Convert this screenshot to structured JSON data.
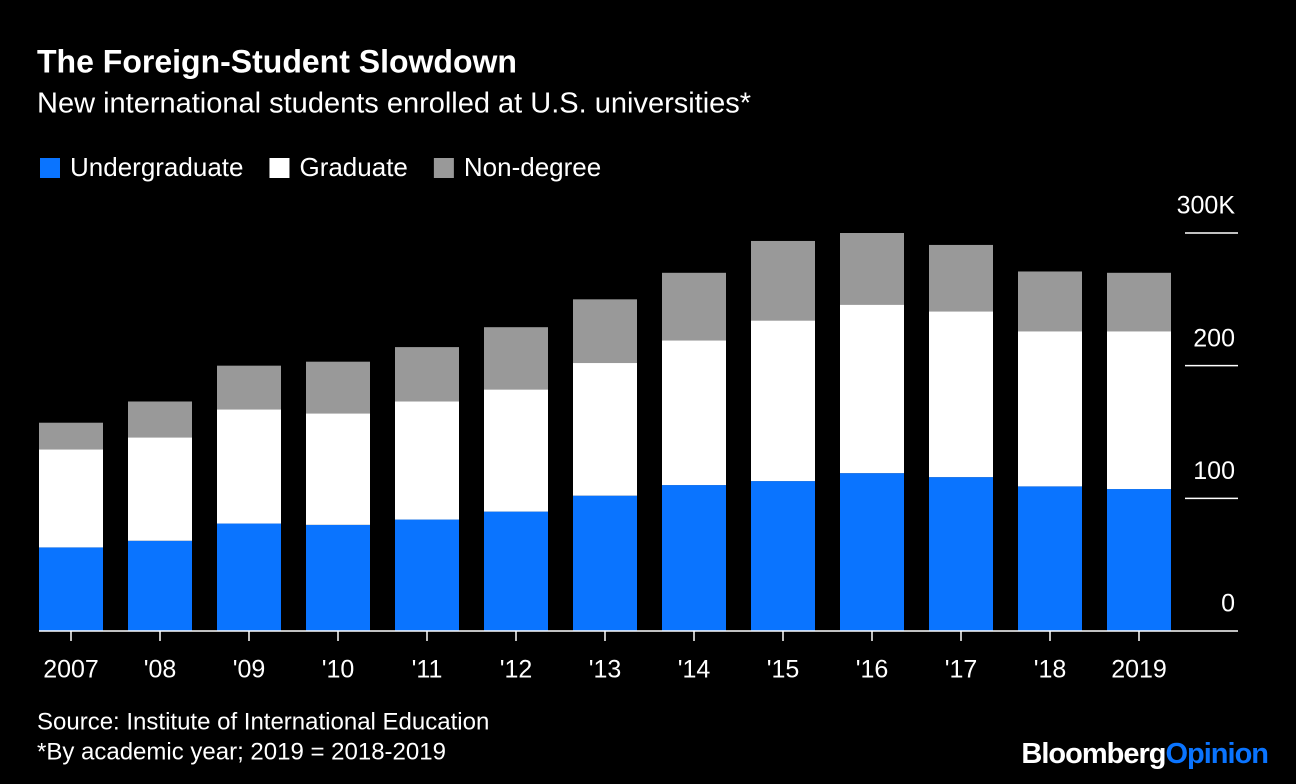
{
  "chart_data": {
    "type": "stacked_bar",
    "title": "The Foreign-Student Slowdown",
    "subtitle": "New international students enrolled at U.S. universities*",
    "categories": [
      "2007",
      "'08",
      "'09",
      "'10",
      "'11",
      "'12",
      "'13",
      "'14",
      "'15",
      "'16",
      "'17",
      "'18",
      "2019"
    ],
    "series": [
      {
        "name": "Undergraduate",
        "color": "#0a74ff",
        "values": [
          63,
          68,
          81,
          80,
          84,
          90,
          102,
          110,
          113,
          119,
          116,
          109,
          107
        ]
      },
      {
        "name": "Graduate",
        "color": "#ffffff",
        "values": [
          74,
          78,
          86,
          84,
          89,
          92,
          100,
          109,
          121,
          127,
          125,
          117,
          119
        ]
      },
      {
        "name": "Non-degree",
        "color": "#999999",
        "values": [
          20,
          27,
          33,
          39,
          41,
          47,
          48,
          51,
          60,
          54,
          50,
          45,
          44
        ]
      }
    ],
    "ylim": [
      0,
      300
    ],
    "yticks": [
      0,
      100,
      200,
      {
        "value": 300,
        "label": "300K"
      }
    ],
    "source": "Source: Institute of International Education",
    "note": "*By academic year; 2019 = 2018-2019",
    "brand": [
      "Bloomberg",
      "Opinion"
    ]
  }
}
